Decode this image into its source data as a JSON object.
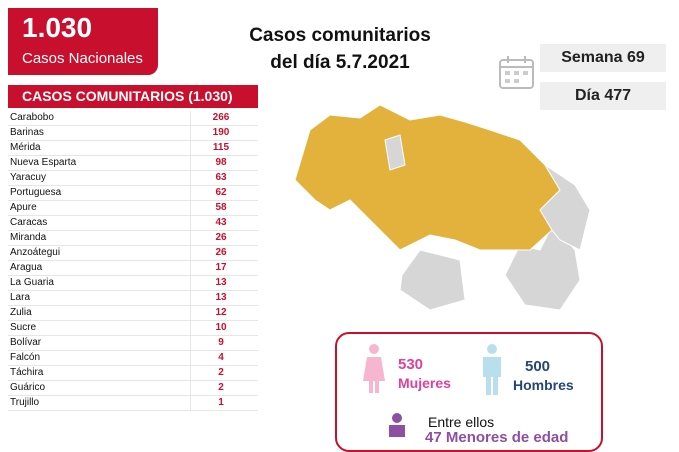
{
  "header": {
    "total": "1.030",
    "total_label": "Casos Nacionales",
    "title_line1": "Casos comunitarios",
    "title_line2": "del día 5.7.2021",
    "week": "Semana 69",
    "day": "Día 477"
  },
  "table": {
    "title": "CASOS COMUNITARIOS (1.030)",
    "rows": [
      [
        "Carabobo",
        "266"
      ],
      [
        "Barinas",
        "190"
      ],
      [
        "Mérida",
        "115"
      ],
      [
        "Nueva Esparta",
        "98"
      ],
      [
        "Yaracuy",
        "63"
      ],
      [
        "Portuguesa",
        "62"
      ],
      [
        "Apure",
        "58"
      ],
      [
        "Caracas",
        "43"
      ],
      [
        "Miranda",
        "26"
      ],
      [
        "Anzoátegui",
        "26"
      ],
      [
        "Aragua",
        "17"
      ],
      [
        "La Guaria",
        "13"
      ],
      [
        "Lara",
        "13"
      ],
      [
        "Zulia",
        "12"
      ],
      [
        "Sucre",
        "10"
      ],
      [
        "Bolívar",
        "9"
      ],
      [
        "Falcón",
        "4"
      ],
      [
        "Táchira",
        "2"
      ],
      [
        "Guárico",
        "2"
      ],
      [
        "Trujillo",
        "1"
      ]
    ]
  },
  "gender": {
    "women": "530",
    "women_label": "Mujeres",
    "men": "500",
    "men_label": "Hombres",
    "among": "Entre ellos",
    "minors": "47 Menores de edad"
  }
}
